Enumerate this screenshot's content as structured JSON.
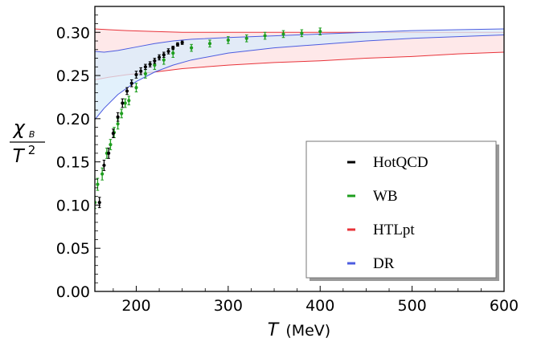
{
  "chart_data": {
    "type": "scatter",
    "title": "",
    "xlabel": "T",
    "xunit": "(MeV)",
    "ylabel_num": "χ",
    "ylabel_sub": "B",
    "ylabel_den": "T",
    "ylabel_den_exp": "2",
    "xlim": [
      155,
      600
    ],
    "ylim": [
      0.0,
      0.33
    ],
    "xticks": [
      200,
      300,
      400,
      500,
      600
    ],
    "yticks": [
      0.0,
      0.05,
      0.1,
      0.15,
      0.2,
      0.25,
      0.3
    ],
    "ytick_labels": [
      "0.00",
      "0.05",
      "0.10",
      "0.15",
      "0.20",
      "0.25",
      "0.30"
    ],
    "legend_position": "bottom-right",
    "series": [
      {
        "name": "HotQCD",
        "color": "#000000",
        "kind": "points",
        "x": [
          160,
          165,
          170,
          175,
          180,
          185,
          190,
          195,
          200,
          205,
          210,
          215,
          220,
          225,
          230,
          235,
          240,
          245,
          250
        ],
        "y": [
          0.103,
          0.146,
          0.16,
          0.183,
          0.202,
          0.218,
          0.232,
          0.241,
          0.251,
          0.255,
          0.26,
          0.263,
          0.267,
          0.271,
          0.274,
          0.278,
          0.282,
          0.286,
          0.288
        ],
        "err": [
          0.006,
          0.006,
          0.006,
          0.005,
          0.005,
          0.005,
          0.004,
          0.004,
          0.004,
          0.004,
          0.003,
          0.003,
          0.003,
          0.003,
          0.003,
          0.003,
          0.002,
          0.002,
          0.002
        ]
      },
      {
        "name": "WB",
        "color": "#1e9e1e",
        "kind": "points",
        "x": [
          155,
          158,
          163,
          168,
          172,
          176,
          180,
          184,
          188,
          192,
          200,
          210,
          220,
          230,
          240,
          260,
          280,
          300,
          320,
          340,
          360,
          380,
          400
        ],
        "y": [
          0.103,
          0.124,
          0.136,
          0.16,
          0.17,
          0.184,
          0.194,
          0.206,
          0.218,
          0.221,
          0.236,
          0.252,
          0.262,
          0.268,
          0.276,
          0.282,
          0.287,
          0.291,
          0.293,
          0.296,
          0.298,
          0.299,
          0.301
        ],
        "err": [
          0.007,
          0.007,
          0.007,
          0.006,
          0.006,
          0.006,
          0.006,
          0.005,
          0.005,
          0.005,
          0.005,
          0.005,
          0.005,
          0.005,
          0.005,
          0.004,
          0.004,
          0.004,
          0.004,
          0.004,
          0.004,
          0.004,
          0.004
        ]
      },
      {
        "name": "HTLpt",
        "color": "#e8333a",
        "kind": "band",
        "fill": "#fde0e2",
        "x": [
          155,
          170,
          190,
          220,
          250,
          300,
          350,
          400,
          450,
          500,
          550,
          600
        ],
        "upper": [
          0.304,
          0.303,
          0.302,
          0.301,
          0.3,
          0.3,
          0.3,
          0.3,
          0.3,
          0.3,
          0.3,
          0.3
        ],
        "lower": [
          0.245,
          0.248,
          0.251,
          0.254,
          0.258,
          0.262,
          0.265,
          0.267,
          0.27,
          0.272,
          0.275,
          0.277
        ]
      },
      {
        "name": "DR",
        "color": "#4c5ce0",
        "kind": "band",
        "fill": "#d8ecfb",
        "x": [
          155,
          165,
          180,
          200,
          220,
          240,
          260,
          300,
          350,
          400,
          450,
          500,
          550,
          600
        ],
        "upper": [
          0.278,
          0.277,
          0.279,
          0.283,
          0.287,
          0.29,
          0.292,
          0.294,
          0.296,
          0.298,
          0.3,
          0.302,
          0.303,
          0.304
        ],
        "lower": [
          0.199,
          0.212,
          0.228,
          0.243,
          0.254,
          0.262,
          0.268,
          0.276,
          0.282,
          0.286,
          0.29,
          0.293,
          0.295,
          0.297
        ]
      }
    ]
  }
}
